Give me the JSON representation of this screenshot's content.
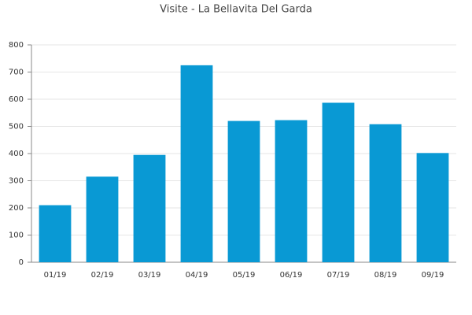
{
  "chart_data": {
    "type": "bar",
    "title": "Visite - La Bellavita Del Garda",
    "categories": [
      "01/19",
      "02/19",
      "03/19",
      "04/19",
      "05/19",
      "06/19",
      "07/19",
      "08/19",
      "09/19"
    ],
    "values": [
      210,
      315,
      395,
      725,
      520,
      523,
      587,
      508,
      402
    ],
    "color": "#0999d4",
    "ylim": [
      0,
      800
    ],
    "yticks": [
      0,
      100,
      200,
      300,
      400,
      500,
      600,
      700,
      800
    ],
    "grid": true
  }
}
